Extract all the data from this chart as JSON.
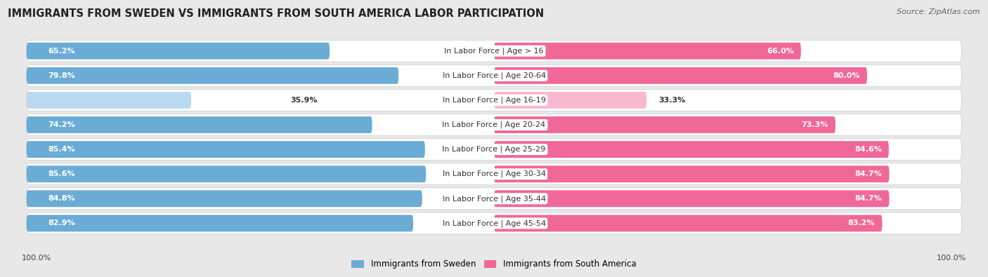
{
  "title": "IMMIGRANTS FROM SWEDEN VS IMMIGRANTS FROM SOUTH AMERICA LABOR PARTICIPATION",
  "source": "Source: ZipAtlas.com",
  "categories": [
    "In Labor Force | Age > 16",
    "In Labor Force | Age 20-64",
    "In Labor Force | Age 16-19",
    "In Labor Force | Age 20-24",
    "In Labor Force | Age 25-29",
    "In Labor Force | Age 30-34",
    "In Labor Force | Age 35-44",
    "In Labor Force | Age 45-54"
  ],
  "sweden_values": [
    65.2,
    79.8,
    35.9,
    74.2,
    85.4,
    85.6,
    84.8,
    82.9
  ],
  "south_america_values": [
    66.0,
    80.0,
    33.3,
    73.3,
    84.6,
    84.7,
    84.7,
    83.2
  ],
  "sweden_color": "#6aacd5",
  "sweden_color_light": "#b8d9ef",
  "south_america_color": "#f06898",
  "south_america_color_light": "#f8b8cf",
  "max_value": 100.0,
  "light_threshold": 50.0,
  "legend_sweden": "Immigrants from Sweden",
  "legend_south_america": "Immigrants from South America",
  "background_color": "#e8e8e8",
  "row_bg_color": "#ffffff",
  "row_separator_color": "#cccccc",
  "footer_label": "100.0%",
  "title_fontsize": 10.5,
  "source_fontsize": 8.0,
  "bar_label_fontsize": 8.0,
  "cat_label_fontsize": 8.0,
  "legend_fontsize": 8.5
}
